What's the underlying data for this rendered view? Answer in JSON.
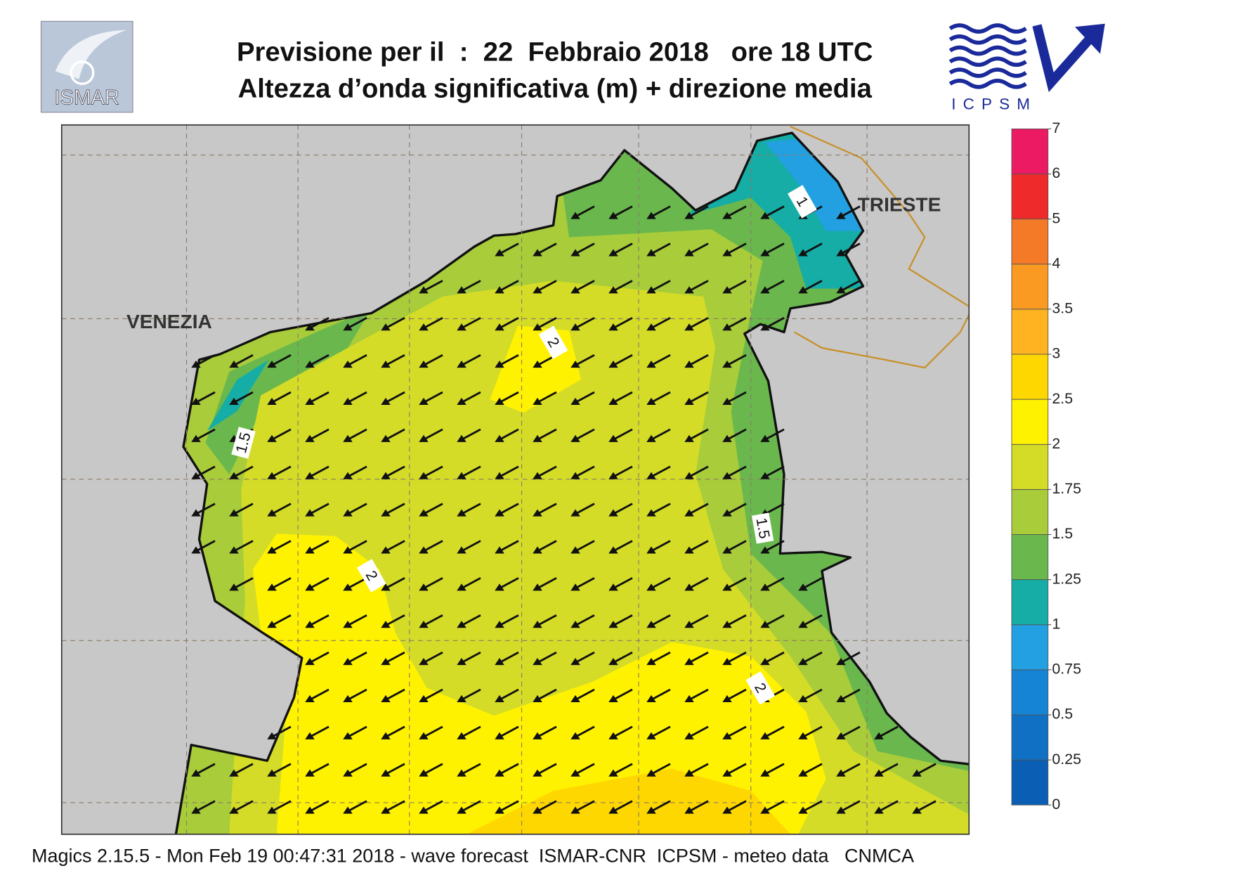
{
  "header": {
    "title_line1": "Previsione per il  :  22  Febbraio 2018   ore 18 UTC",
    "title_line2": "Altezza d’onda significativa (m) + direzione media"
  },
  "logos": {
    "left": "ISMAR",
    "right": "ICPSM"
  },
  "map": {
    "places": [
      "VENEZIA",
      "TRIESTE"
    ],
    "contour_labels": [
      1,
      2,
      1.5,
      1.5,
      2,
      2
    ]
  },
  "colorbar": {
    "ticks": [
      0,
      0.25,
      0.5,
      0.75,
      1,
      1.25,
      1.5,
      1.75,
      2,
      2.5,
      3,
      3.5,
      4,
      5,
      6,
      7
    ],
    "colors": [
      "#0a5fb4",
      "#0f70c4",
      "#1584d4",
      "#22a0e2",
      "#15ada5",
      "#6ab84d",
      "#a8cc3a",
      "#d4dc28",
      "#fff200",
      "#ffd700",
      "#ffb321",
      "#fb9a22",
      "#f47a28",
      "#ee2a2a",
      "#ec1a62"
    ]
  },
  "footer": "Magics 2.15.5 - Mon Feb 19 00:47:31 2018 - wave forecast  ISMAR-CNR  ICPSM - meteo data   CNMCA"
}
